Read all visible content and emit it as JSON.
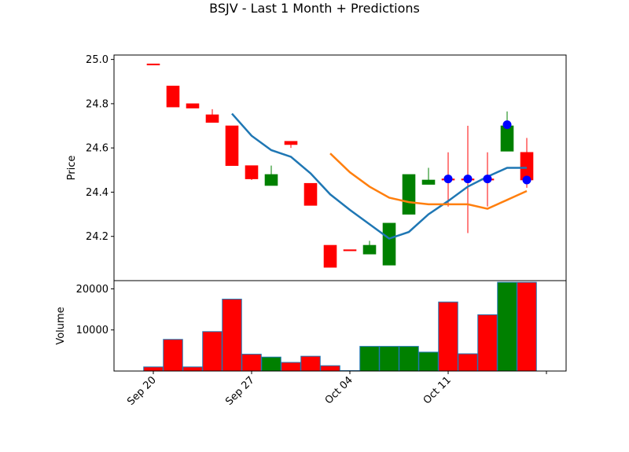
{
  "title": "BSJV - Last 1 Month + Predictions",
  "chart_data": [
    {
      "type": "candlestick",
      "ylabel": "Price",
      "ylim": [
        24.0,
        25.02
      ],
      "yticks": [
        24.2,
        24.4,
        24.6,
        24.8,
        25.0
      ],
      "ytick_labels": [
        "24.2",
        "24.4",
        "24.6",
        "24.8",
        "25.0"
      ],
      "x_index_range": [
        -2,
        21
      ],
      "candles": [
        {
          "i": 0,
          "open": 24.98,
          "high": 24.98,
          "low": 24.975,
          "close": 24.975,
          "dir": "down"
        },
        {
          "i": 1,
          "open": 24.88,
          "high": 24.88,
          "low": 24.785,
          "close": 24.785,
          "dir": "down"
        },
        {
          "i": 2,
          "open": 24.8,
          "high": 24.8,
          "low": 24.78,
          "close": 24.78,
          "dir": "down"
        },
        {
          "i": 3,
          "open": 24.75,
          "high": 24.775,
          "low": 24.715,
          "close": 24.715,
          "dir": "down"
        },
        {
          "i": 4,
          "open": 24.7,
          "high": 24.7,
          "low": 24.52,
          "close": 24.52,
          "dir": "down"
        },
        {
          "i": 5,
          "open": 24.52,
          "high": 24.52,
          "low": 24.455,
          "close": 24.46,
          "dir": "down"
        },
        {
          "i": 6,
          "open": 24.43,
          "high": 24.52,
          "low": 24.43,
          "close": 24.48,
          "dir": "up"
        },
        {
          "i": 7,
          "open": 24.63,
          "high": 24.63,
          "low": 24.6,
          "close": 24.615,
          "dir": "down"
        },
        {
          "i": 8,
          "open": 24.44,
          "high": 24.44,
          "low": 24.34,
          "close": 24.34,
          "dir": "down"
        },
        {
          "i": 9,
          "open": 24.16,
          "high": 24.16,
          "low": 24.06,
          "close": 24.06,
          "dir": "down"
        },
        {
          "i": 10,
          "open": 24.14,
          "high": 24.14,
          "low": 24.14,
          "close": 24.14,
          "dir": "down"
        },
        {
          "i": 11,
          "open": 24.12,
          "high": 24.18,
          "low": 24.12,
          "close": 24.16,
          "dir": "up"
        },
        {
          "i": 12,
          "open": 24.07,
          "high": 24.26,
          "low": 24.07,
          "close": 24.26,
          "dir": "up"
        },
        {
          "i": 13,
          "open": 24.3,
          "high": 24.48,
          "low": 24.3,
          "close": 24.48,
          "dir": "up"
        },
        {
          "i": 14,
          "open": 24.435,
          "high": 24.51,
          "low": 24.435,
          "close": 24.455,
          "dir": "up"
        },
        {
          "i": 15,
          "open": 24.46,
          "high": 24.58,
          "low": 24.335,
          "close": 24.46,
          "dir": "down"
        },
        {
          "i": 16,
          "open": 24.46,
          "high": 24.7,
          "low": 24.215,
          "close": 24.46,
          "dir": "down"
        },
        {
          "i": 17,
          "open": 24.46,
          "high": 24.58,
          "low": 24.335,
          "close": 24.46,
          "dir": "down"
        },
        {
          "i": 18,
          "open": 24.585,
          "high": 24.765,
          "low": 24.585,
          "close": 24.7,
          "dir": "up"
        },
        {
          "i": 19,
          "open": 24.58,
          "high": 24.645,
          "low": 24.42,
          "close": 24.455,
          "dir": "down"
        }
      ],
      "ma_fast": {
        "color": "#1f77b4",
        "points": [
          [
            4,
            24.755
          ],
          [
            5,
            24.655
          ],
          [
            6,
            24.59
          ],
          [
            7,
            24.56
          ],
          [
            8,
            24.485
          ],
          [
            9,
            24.39
          ],
          [
            10,
            24.32
          ],
          [
            11,
            24.255
          ],
          [
            12,
            24.19
          ],
          [
            13,
            24.22
          ],
          [
            14,
            24.3
          ],
          [
            15,
            24.36
          ],
          [
            16,
            24.425
          ],
          [
            17,
            24.47
          ],
          [
            18,
            24.51
          ],
          [
            19,
            24.51
          ]
        ]
      },
      "ma_slow": {
        "color": "#ff7f0e",
        "points": [
          [
            9,
            24.575
          ],
          [
            10,
            24.49
          ],
          [
            11,
            24.425
          ],
          [
            12,
            24.375
          ],
          [
            13,
            24.355
          ],
          [
            14,
            24.345
          ],
          [
            15,
            24.345
          ],
          [
            16,
            24.345
          ],
          [
            17,
            24.325
          ],
          [
            18,
            24.365
          ],
          [
            19,
            24.405
          ]
        ]
      },
      "predictions": {
        "color": "#0000ff",
        "points": [
          [
            15,
            24.46
          ],
          [
            16,
            24.46
          ],
          [
            17,
            24.46
          ],
          [
            18,
            24.705
          ],
          [
            19,
            24.455
          ]
        ]
      }
    },
    {
      "type": "bar",
      "ylabel": "Volume",
      "ylim": [
        0,
        22000
      ],
      "yticks": [
        10000,
        20000
      ],
      "ytick_labels": [
        "10000",
        "20000"
      ],
      "bars": [
        {
          "i": 0,
          "value": 1000,
          "dir": "down"
        },
        {
          "i": 1,
          "value": 7700,
          "dir": "down"
        },
        {
          "i": 2,
          "value": 1000,
          "dir": "down"
        },
        {
          "i": 3,
          "value": 9600,
          "dir": "down"
        },
        {
          "i": 4,
          "value": 17500,
          "dir": "down"
        },
        {
          "i": 5,
          "value": 4100,
          "dir": "down"
        },
        {
          "i": 6,
          "value": 3400,
          "dir": "up"
        },
        {
          "i": 7,
          "value": 2100,
          "dir": "down"
        },
        {
          "i": 8,
          "value": 3600,
          "dir": "down"
        },
        {
          "i": 9,
          "value": 1300,
          "dir": "down"
        },
        {
          "i": 10,
          "value": 100,
          "dir": "down"
        },
        {
          "i": 11,
          "value": 6000,
          "dir": "up"
        },
        {
          "i": 12,
          "value": 6000,
          "dir": "up"
        },
        {
          "i": 13,
          "value": 6000,
          "dir": "up"
        },
        {
          "i": 14,
          "value": 4600,
          "dir": "up"
        },
        {
          "i": 15,
          "value": 16800,
          "dir": "down"
        },
        {
          "i": 16,
          "value": 4200,
          "dir": "down"
        },
        {
          "i": 17,
          "value": 13700,
          "dir": "down"
        },
        {
          "i": 18,
          "value": 21600,
          "dir": "up"
        },
        {
          "i": 19,
          "value": 21600,
          "dir": "down"
        }
      ]
    }
  ],
  "x_ticks": [
    {
      "i": 0,
      "label": "Sep 20"
    },
    {
      "i": 5,
      "label": "Sep 27"
    },
    {
      "i": 10,
      "label": "Oct 04"
    },
    {
      "i": 15,
      "label": "Oct 11"
    },
    {
      "i": 20,
      "label": ""
    }
  ],
  "colors": {
    "up": "#008000",
    "down": "#ff0000",
    "bar_edge": "#1f77b4"
  }
}
